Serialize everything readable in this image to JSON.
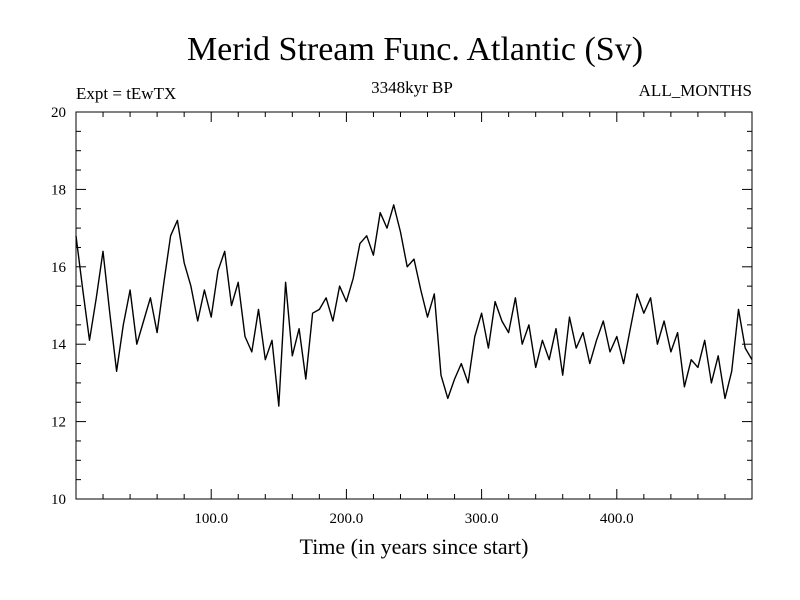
{
  "chart_data": {
    "type": "line",
    "title": "Merid Stream Func. Atlantic (Sv)",
    "subtitle": "3348kyr BP",
    "left_label": "Expt = tEwTX",
    "right_label": "ALL_MONTHS",
    "xlabel": "Time (in years since start)",
    "ylabel": "",
    "xlim": [
      0,
      500
    ],
    "ylim": [
      10,
      20
    ],
    "x_ticks": [
      100,
      200,
      300,
      400
    ],
    "x_tick_labels": [
      "100.0",
      "200.0",
      "300.0",
      "400.0"
    ],
    "y_ticks": [
      10,
      12,
      14,
      16,
      18,
      20
    ],
    "y_tick_labels": [
      "10",
      "12",
      "14",
      "16",
      "18",
      "20"
    ],
    "series": [
      {
        "name": "Merid Stream Func. Atlantic",
        "color": "#000000",
        "x": [
          0,
          5,
          10,
          15,
          20,
          25,
          30,
          35,
          40,
          45,
          50,
          55,
          60,
          65,
          70,
          75,
          80,
          85,
          90,
          95,
          100,
          105,
          110,
          115,
          120,
          125,
          130,
          135,
          140,
          145,
          150,
          155,
          160,
          165,
          170,
          175,
          180,
          185,
          190,
          195,
          200,
          205,
          210,
          215,
          220,
          225,
          230,
          235,
          240,
          245,
          250,
          255,
          260,
          265,
          270,
          275,
          280,
          285,
          290,
          295,
          300,
          305,
          310,
          315,
          320,
          325,
          330,
          335,
          340,
          345,
          350,
          355,
          360,
          365,
          370,
          375,
          380,
          385,
          390,
          395,
          400,
          405,
          410,
          415,
          420,
          425,
          430,
          435,
          440,
          445,
          450,
          455,
          460,
          465,
          470,
          475,
          480,
          485,
          490,
          495,
          500
        ],
        "y": [
          16.8,
          15.4,
          14.1,
          15.2,
          16.4,
          14.8,
          13.3,
          14.5,
          15.4,
          14.0,
          14.6,
          15.2,
          14.3,
          15.6,
          16.8,
          17.2,
          16.1,
          15.5,
          14.6,
          15.4,
          14.7,
          15.9,
          16.4,
          15.0,
          15.6,
          14.2,
          13.8,
          14.9,
          13.6,
          14.1,
          12.4,
          15.6,
          13.7,
          14.4,
          13.1,
          14.8,
          14.9,
          15.2,
          14.6,
          15.5,
          15.1,
          15.7,
          16.6,
          16.8,
          16.3,
          17.4,
          17.0,
          17.6,
          16.9,
          16.0,
          16.2,
          15.4,
          14.7,
          15.3,
          13.2,
          12.6,
          13.1,
          13.5,
          13.0,
          14.2,
          14.8,
          13.9,
          15.1,
          14.6,
          14.3,
          15.2,
          14.0,
          14.5,
          13.4,
          14.1,
          13.6,
          14.4,
          13.2,
          14.7,
          13.9,
          14.3,
          13.5,
          14.1,
          14.6,
          13.8,
          14.2,
          13.5,
          14.4,
          15.3,
          14.8,
          15.2,
          14.0,
          14.6,
          13.8,
          14.3,
          12.9,
          13.6,
          13.4,
          14.1,
          13.0,
          13.7,
          12.6,
          13.3,
          14.9,
          13.9,
          13.6
        ]
      }
    ]
  }
}
